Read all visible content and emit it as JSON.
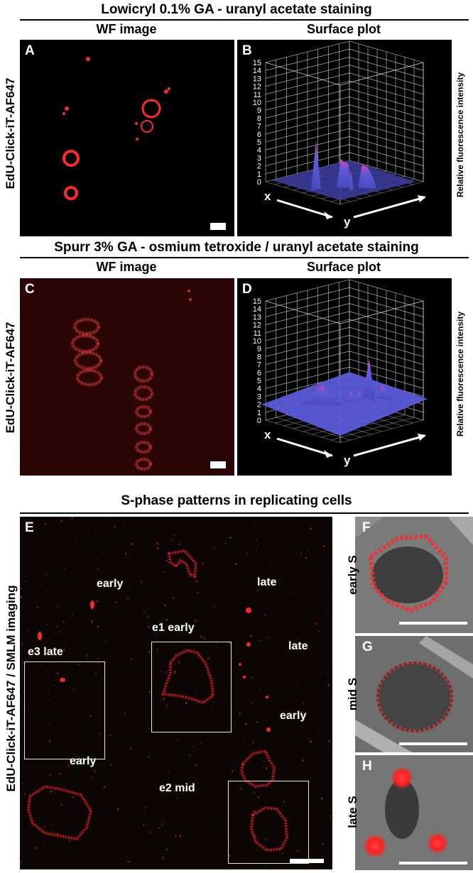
{
  "section1": {
    "title": "Lowicryl 0.1% GA - uranyl acetate staining",
    "wf_header": "WF image",
    "surface_header": "Surface plot",
    "row_label": "EdU-Click-iT-AF647",
    "panel_a": "A",
    "panel_b": "B"
  },
  "section2": {
    "title": "Spurr 3% GA - osmium tetroxide / uranyl acetate staining",
    "wf_header": "WF image",
    "surface_header": "Surface plot",
    "row_label": "EdU-Click-iT-AF647",
    "panel_c": "C",
    "panel_d": "D"
  },
  "section3": {
    "title": "S-phase patterns in replicating cells",
    "row_label": "EdU-Click-iT-AF647 / SMLM imaging",
    "panel_e": "E",
    "panel_f": "F",
    "panel_g": "G",
    "panel_h": "H",
    "labels": {
      "early_top": "early",
      "late_top": "late",
      "e1": "e1 early",
      "late_mid": "late",
      "e3": "e3 late",
      "early_right": "early",
      "early_left": "early",
      "e2": "e2 mid"
    },
    "side_labels": {
      "f": "early S",
      "g": "mid S",
      "h": "late S"
    }
  },
  "surface_plot": {
    "z_ticks": [
      "0",
      "1",
      "2",
      "3",
      "4",
      "5",
      "6",
      "7",
      "8",
      "9",
      "10",
      "11",
      "12",
      "13",
      "14",
      "15"
    ],
    "z_label": "Relative fluorescence intensity",
    "x_label": "x",
    "y_label": "y"
  },
  "colors": {
    "signal_red": "#ff2020",
    "surface_blue": "#5a5ad8",
    "surface_pink": "#e040b0"
  }
}
